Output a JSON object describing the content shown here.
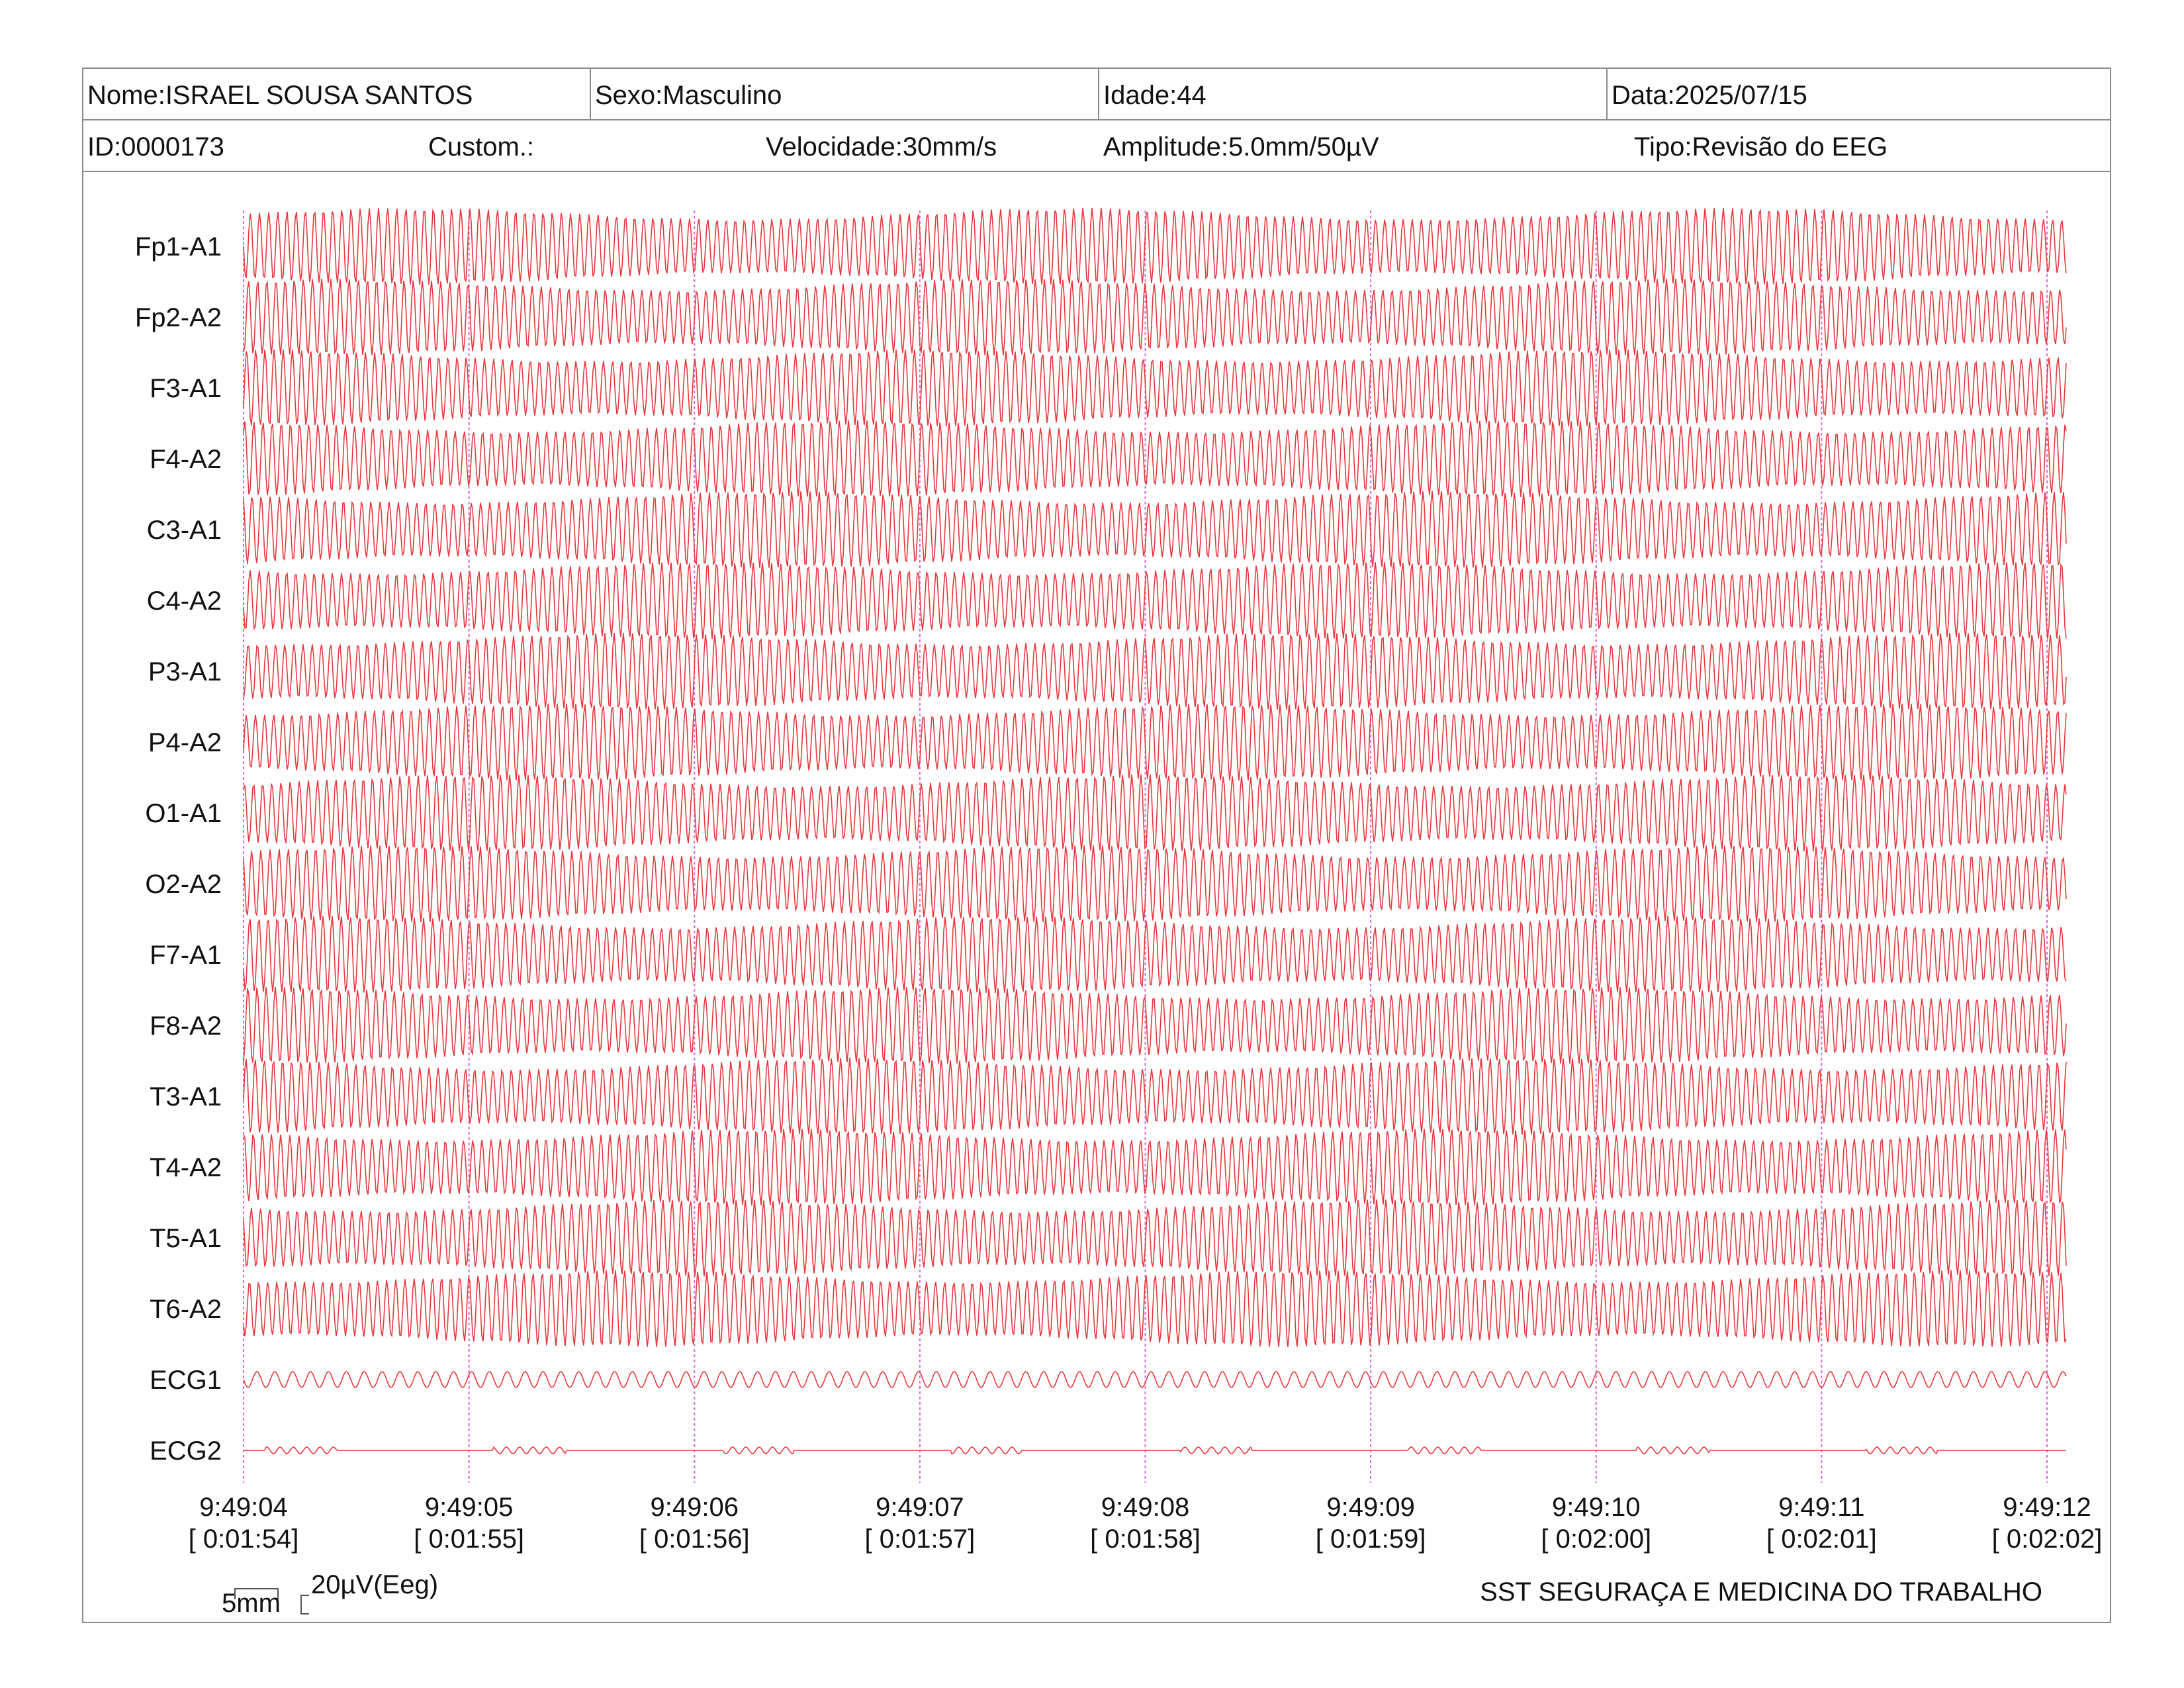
{
  "header": {
    "name": "Nome:ISRAEL SOUSA SANTOS",
    "sex": "Sexo:Masculino",
    "age": "Idade:44",
    "date": "Data:2025/07/15",
    "id": "ID:0000173",
    "custom": "Custom.:",
    "speed": "Velocidade:30mm/s",
    "amplitude": "Amplitude:5.0mm/50µV",
    "type": "Tipo:Revisão do EEG"
  },
  "channels": [
    "Fp1-A1",
    "Fp2-A2",
    "F3-A1",
    "F4-A2",
    "C3-A1",
    "C4-A2",
    "P3-A1",
    "P4-A2",
    "O1-A1",
    "O2-A2",
    "F7-A1",
    "F8-A2",
    "T3-A1",
    "T4-A2",
    "T5-A1",
    "T6-A2",
    "ECG1",
    "ECG2"
  ],
  "time_marks": [
    {
      "clock": "9:49:04",
      "elapsed": "[ 0:01:54]"
    },
    {
      "clock": "9:49:05",
      "elapsed": "[ 0:01:55]"
    },
    {
      "clock": "9:49:06",
      "elapsed": "[ 0:01:56]"
    },
    {
      "clock": "9:49:07",
      "elapsed": "[ 0:01:57]"
    },
    {
      "clock": "9:49:08",
      "elapsed": "[ 0:01:58]"
    },
    {
      "clock": "9:49:09",
      "elapsed": "[ 0:01:59]"
    },
    {
      "clock": "9:49:10",
      "elapsed": "[ 0:02:00]"
    },
    {
      "clock": "9:49:11",
      "elapsed": "[ 0:02:01]"
    },
    {
      "clock": "9:49:12",
      "elapsed": "[ 0:02:02]"
    }
  ],
  "scale": {
    "time": "5mm",
    "amplitude": "20µV(Eeg)"
  },
  "footer": "SST SEGURAÇA E MEDICINA DO TRABALHO",
  "colors": {
    "trace": "#e8383d",
    "marker": "#d966d9",
    "border": "#8a8a8a"
  }
}
